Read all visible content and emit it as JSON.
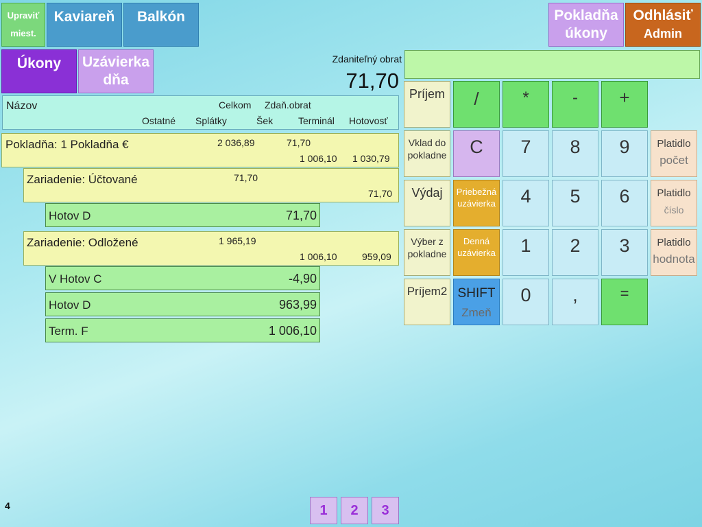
{
  "top_nav": {
    "edit_places_line1": "Upraviť",
    "edit_places_line2": "miest.",
    "room_kaviaren": "Kaviareň",
    "room_balkon": "Balkón",
    "cash_ops_line1": "Pokladňa",
    "cash_ops_line2": "úkony",
    "logout_line1": "Odhlásiť",
    "logout_line2": "Admin"
  },
  "tabs": {
    "ukony": "Úkony",
    "uzavierka_line1": "Uzávierka",
    "uzavierka_line2": "dňa"
  },
  "taxable": {
    "label": "Zdaniteľný obrat",
    "value": "71,70"
  },
  "input_display": {
    "value": ""
  },
  "table_header": {
    "nazov": "Názov",
    "celkom": "Celkom",
    "zdan_obrat": "Zdaň.obrat",
    "ostatne": "Ostatné",
    "splatky": "Splátky",
    "sek": "Šek",
    "terminal": "Terminál",
    "hotovost": "Hotovosť"
  },
  "rows": {
    "pokladna": {
      "name": "Pokladňa: 1 Pokladňa €",
      "celkom": "2 036,89",
      "zdan": "71,70",
      "terminal": "1 006,10",
      "hotovost": "1 030,79"
    },
    "uctovane": {
      "name": "Zariadenie: Účtované",
      "celkom": "71,70",
      "hotovost": "71,70"
    },
    "hotov_d_1": {
      "name": "Hotov D",
      "value": "71,70"
    },
    "odlozene": {
      "name": "Zariadenie: Odložené",
      "celkom": "1 965,19",
      "terminal": "1 006,10",
      "hotovost": "959,09"
    },
    "v_hotov_c": {
      "name": "V Hotov C",
      "value": "-4,90"
    },
    "hotov_d_2": {
      "name": "Hotov D",
      "value": "963,99"
    },
    "term_f": {
      "name": "Term. F",
      "value": "1 006,10"
    }
  },
  "keypad": {
    "prijem": "Príjem",
    "slash": "/",
    "star": "*",
    "minus": "-",
    "plus": "+",
    "vklad_line1": "Vklad do",
    "vklad_line2": "pokladne",
    "clear": "C",
    "k7": "7",
    "k8": "8",
    "k9": "9",
    "platidlo_pocet_line1": "Platidlo",
    "platidlo_pocet_line2": "počet",
    "vydaj": "Výdaj",
    "priebezna_line1": "Priebežná",
    "priebezna_line2": "uzávierka",
    "k4": "4",
    "k5": "5",
    "k6": "6",
    "platidlo_cislo_line1": "Platidlo",
    "platidlo_cislo_line2": "číslo",
    "vyber_line1": "Výber z",
    "vyber_line2": "pokladne",
    "denna_line1": "Denná",
    "denna_line2": "uzávierka",
    "k1": "1",
    "k2": "2",
    "k3": "3",
    "platidlo_hodnota_line1": "Platidlo",
    "platidlo_hodnota_line2": "hodnota",
    "prijem2": "Príjem2",
    "shift_line1": "SHIFT",
    "shift_line2": "Zmeň",
    "k0": "0",
    "comma": ",",
    "equals": "="
  },
  "footer": {
    "counter": "4",
    "pages": [
      "1",
      "2",
      "3"
    ]
  }
}
